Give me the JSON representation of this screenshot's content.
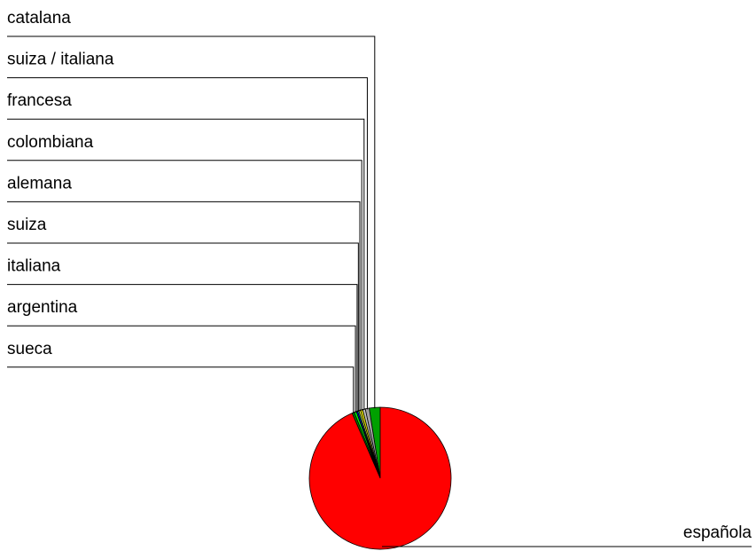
{
  "chart_data": {
    "type": "pie",
    "title": "",
    "legend": "none",
    "slices": [
      {
        "label": "catalana",
        "value": 2.5,
        "color": "#00a000"
      },
      {
        "label": "suiza / italiana",
        "value": 0.9,
        "color": "#a0a0a0"
      },
      {
        "label": "francesa",
        "value": 0.6,
        "color": "#c0c0c0"
      },
      {
        "label": "colombiana",
        "value": 0.5,
        "color": "#e8e800"
      },
      {
        "label": "alemana",
        "value": 0.4,
        "color": "#ffff40"
      },
      {
        "label": "suiza",
        "value": 0.3,
        "color": "#00c0c0"
      },
      {
        "label": "italiana",
        "value": 0.3,
        "color": "#0000ff"
      },
      {
        "label": "argentina",
        "value": 0.5,
        "color": "#00ff00"
      },
      {
        "label": "sueca",
        "value": 0.5,
        "color": "#008000"
      },
      {
        "label": "española",
        "value": 93.5,
        "color": "#ff0000"
      }
    ]
  }
}
